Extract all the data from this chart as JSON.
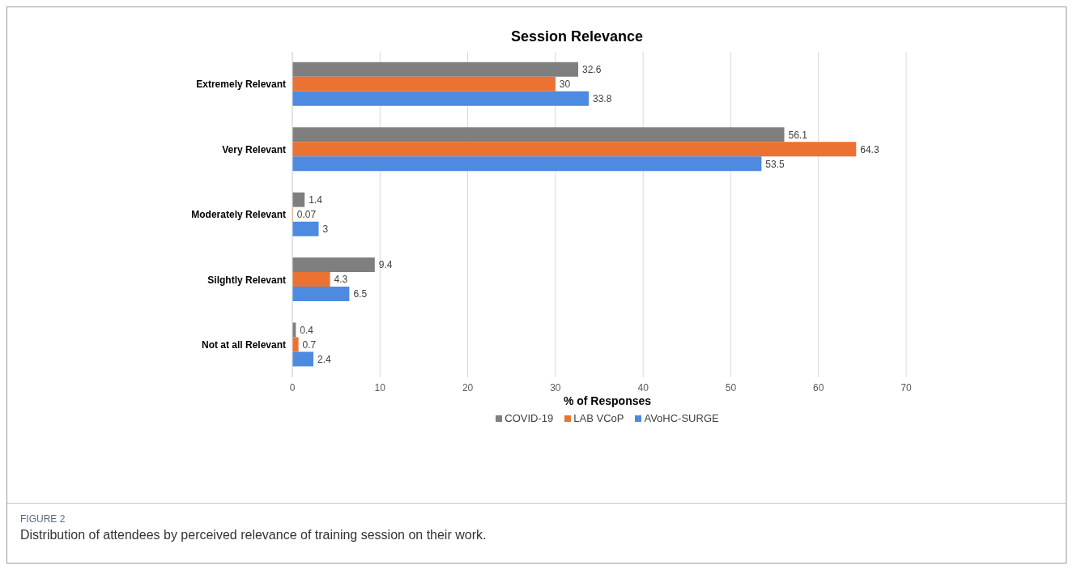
{
  "chart_data": {
    "type": "bar",
    "orientation": "horizontal",
    "title": "Session Relevance",
    "xlabel": "% of Responses",
    "categories": [
      "Extremely  Relevant",
      "Very Relevant",
      "Moderately Relevant",
      "Silghtly Relevant",
      "Not at all Relevant"
    ],
    "series": [
      {
        "name": "COVID-19",
        "color": "#7f7f7f",
        "values": [
          32.6,
          56.1,
          1.4,
          9.4,
          0.4
        ]
      },
      {
        "name": "LAB VCoP",
        "color": "#ec7232",
        "values": [
          30,
          64.3,
          0.07,
          4.3,
          0.7
        ]
      },
      {
        "name": "AVoHC-SURGE",
        "color": "#4d8ae0",
        "values": [
          33.8,
          53.5,
          3,
          6.5,
          2.4
        ]
      }
    ],
    "xlim": [
      0,
      70
    ],
    "xticks": [
      0,
      10,
      20,
      30,
      40,
      50,
      60,
      70
    ],
    "grid": "x",
    "data_labels": true,
    "legend": "bottom",
    "annotations": [
      "FIGURE 2",
      "Distribution of attendees by perceived relevance of training session on their work."
    ]
  }
}
